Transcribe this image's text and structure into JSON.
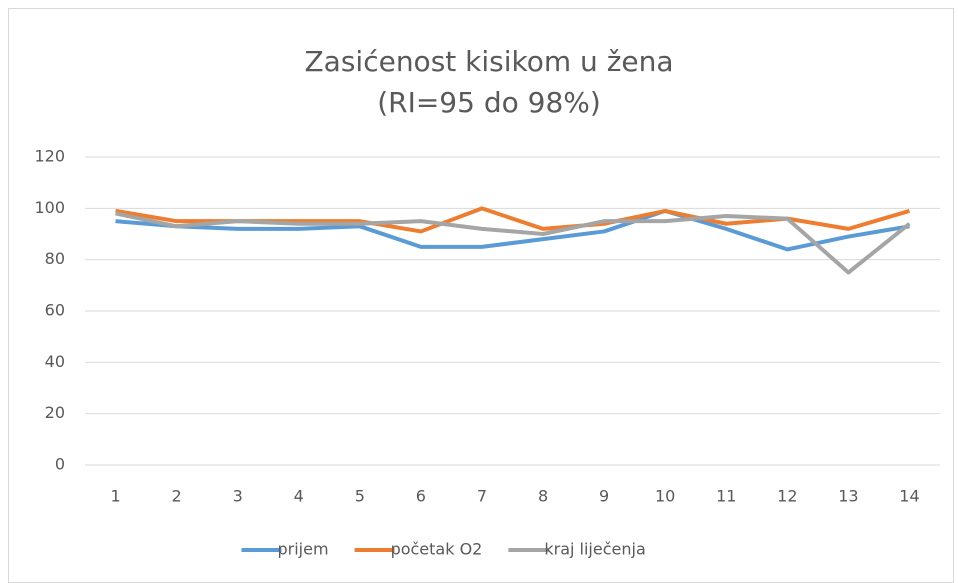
{
  "chart_data": {
    "type": "line",
    "title": "Zasićenost kisikom u žena",
    "subtitle": "(RI=95 do 98%)",
    "categories": [
      "1",
      "2",
      "3",
      "4",
      "5",
      "6",
      "7",
      "8",
      "9",
      "10",
      "11",
      "12",
      "13",
      "14"
    ],
    "series": [
      {
        "name": "prijem",
        "color": "#5b9bd5",
        "values": [
          95,
          93,
          92,
          92,
          93,
          85,
          85,
          88,
          91,
          99,
          92,
          84,
          89,
          93
        ]
      },
      {
        "name": "početak O2",
        "color": "#ed7d31",
        "values": [
          99,
          95,
          95,
          95,
          95,
          91,
          100,
          92,
          94,
          99,
          94,
          96,
          92,
          99
        ]
      },
      {
        "name": "kraj liječenja",
        "color": "#a5a5a5",
        "values": [
          98,
          93,
          95,
          94,
          94,
          95,
          92,
          90,
          95,
          95,
          97,
          96,
          75,
          94
        ]
      }
    ],
    "ylim": [
      0,
      120
    ],
    "yticks": [
      0,
      20,
      40,
      60,
      80,
      100,
      120
    ],
    "grid": true,
    "legend": "bottom"
  }
}
